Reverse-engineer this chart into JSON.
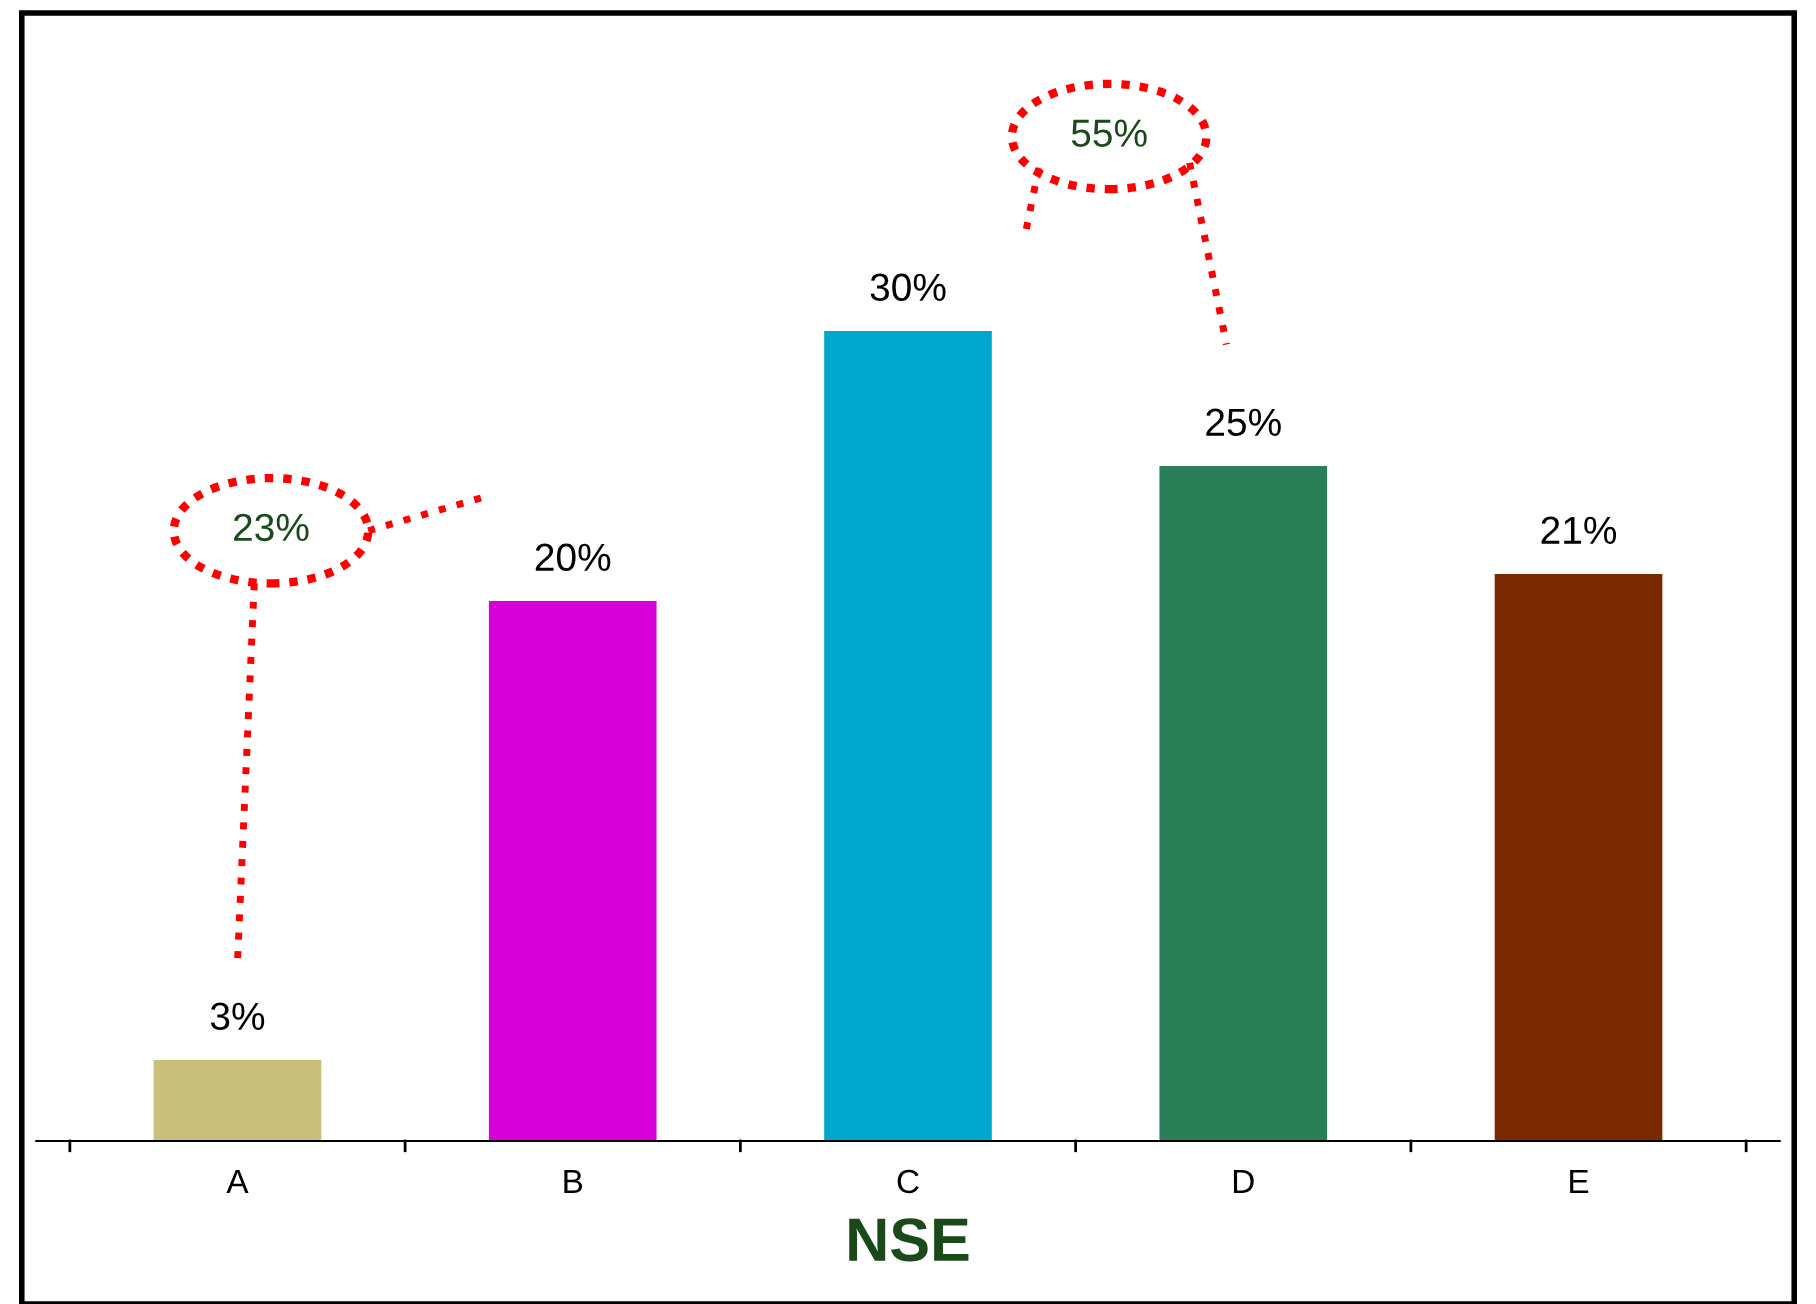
{
  "chart_data": {
    "type": "bar",
    "xlabel": "NSE",
    "categories": [
      "A",
      "B",
      "C",
      "D",
      "E"
    ],
    "values": [
      3,
      20,
      30,
      25,
      21
    ],
    "colors": [
      "#c8c07a",
      "#d800d8",
      "#00a8d0",
      "#2a7f58",
      "#7a2800"
    ],
    "value_labels": [
      "3%",
      "20%",
      "30%",
      "25%",
      "21%"
    ],
    "annotations": [
      "23%",
      "55%"
    ],
    "grid": false,
    "legend": false
  }
}
